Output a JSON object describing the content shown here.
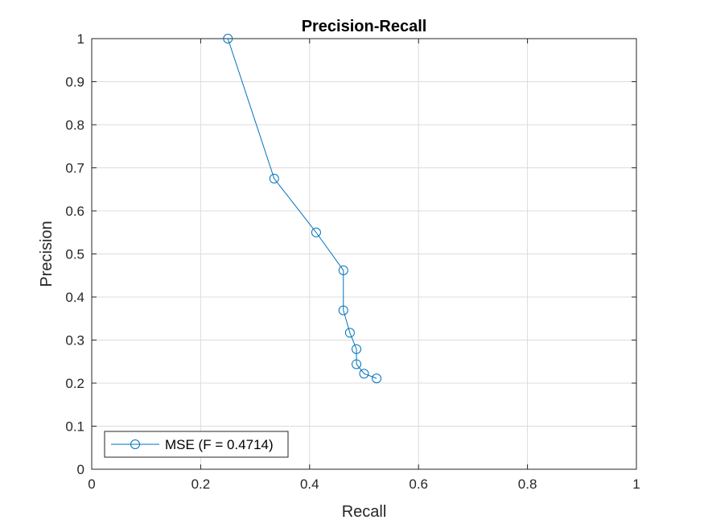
{
  "chart_data": {
    "type": "line",
    "title": "Precision-Recall",
    "xlabel": "Recall",
    "ylabel": "Precision",
    "xlim": [
      0,
      1
    ],
    "ylim": [
      0,
      1
    ],
    "x_ticks": [
      "0",
      "0.2",
      "0.4",
      "0.6",
      "0.8",
      "1"
    ],
    "y_ticks": [
      "0",
      "0.1",
      "0.2",
      "0.3",
      "0.4",
      "0.5",
      "0.6",
      "0.7",
      "0.8",
      "0.9",
      "1"
    ],
    "grid": true,
    "legend_position": "bottom-left",
    "marker": "circle",
    "series": [
      {
        "name": "MSE (F = 0.4714)",
        "color": "#0072bd",
        "x": [
          0.25,
          0.335,
          0.412,
          0.462,
          0.462,
          0.474,
          0.486,
          0.486,
          0.5,
          0.523
        ],
        "y": [
          1.0,
          0.675,
          0.55,
          0.462,
          0.369,
          0.317,
          0.279,
          0.244,
          0.222,
          0.211
        ]
      }
    ]
  }
}
